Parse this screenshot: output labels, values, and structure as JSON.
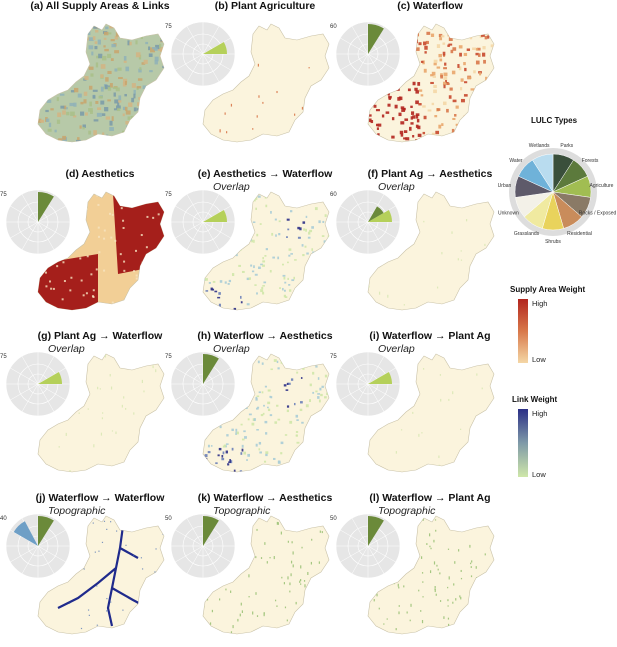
{
  "colors": {
    "supply_low": "#f4d7a6",
    "supply_high": "#b2251e",
    "link_low": "#cfe7a9",
    "link_high": "#2b2f86",
    "base": "#fbf4dd",
    "outline": "#c9c2a8",
    "green_wedge": "#b5d05a",
    "dark_green_wedge": "#6b8a3a",
    "blue_wedge": "#6e9fc6",
    "polar_bg": "#e6e6e6"
  },
  "panels": [
    {
      "id": "a",
      "title": "(a) All Supply Areas & Links",
      "subtitle": "",
      "tick": "",
      "fill": "mixed"
    },
    {
      "id": "b",
      "title": "(b) Plant Agriculture",
      "subtitle": "",
      "tick": "75",
      "fill": "faint-red"
    },
    {
      "id": "c",
      "title": "(c) Waterflow",
      "subtitle": "",
      "tick": "60",
      "fill": "red"
    },
    {
      "id": "d",
      "title": "(d) Aesthetics",
      "subtitle": "",
      "tick": "75",
      "fill": "dark-red"
    },
    {
      "id": "e",
      "title": "(e) Aesthetics → Waterflow",
      "subtitle": "Overlap",
      "tick": "75",
      "fill": "blue-green"
    },
    {
      "id": "f",
      "title": "(f) Plant Ag → Aesthetics",
      "subtitle": "Overlap",
      "tick": "60",
      "fill": "faint"
    },
    {
      "id": "g",
      "title": "(g) Plant Ag → Waterflow",
      "subtitle": "Overlap",
      "tick": "75",
      "fill": "faint"
    },
    {
      "id": "h",
      "title": "(h) Waterflow → Aesthetics",
      "subtitle": "Overlap",
      "tick": "75",
      "fill": "blue-green"
    },
    {
      "id": "i",
      "title": "(i) Waterflow → Plant Ag",
      "subtitle": "Overlap",
      "tick": "75",
      "fill": "faint"
    },
    {
      "id": "j",
      "title": "(j) Waterflow → Waterflow",
      "subtitle": "Topographic",
      "tick": "40",
      "fill": "rivers"
    },
    {
      "id": "k",
      "title": "(k) Waterflow → Aesthetics",
      "subtitle": "Topographic",
      "tick": "50",
      "fill": "faint-green"
    },
    {
      "id": "l",
      "title": "(l) Waterflow → Plant Ag",
      "subtitle": "Topographic",
      "tick": "50",
      "fill": "faint-green"
    }
  ],
  "lulc": {
    "title": "LULC Types",
    "types": [
      {
        "name": "Parks",
        "color": "#3a4f3b"
      },
      {
        "name": "Forests",
        "color": "#5c7a3c"
      },
      {
        "name": "Agriculture",
        "color": "#a1bd52"
      },
      {
        "name": "Rocks / Exposed",
        "color": "#8a7a66"
      },
      {
        "name": "Residential",
        "color": "#c98c5b"
      },
      {
        "name": "Shrubs",
        "color": "#e9d35c"
      },
      {
        "name": "Grasslands",
        "color": "#f0eaa0"
      },
      {
        "name": "Unknown",
        "color": "#f3f1e8"
      },
      {
        "name": "Urban",
        "color": "#5e5a6a"
      },
      {
        "name": "Water",
        "color": "#6fb2d9"
      },
      {
        "name": "Wetlands",
        "color": "#b9dcef"
      }
    ]
  },
  "supply_legend": {
    "title": "Supply Area Weight",
    "high": "High",
    "low": "Low"
  },
  "link_legend": {
    "title": "Link Weight",
    "high": "High",
    "low": "Low"
  }
}
